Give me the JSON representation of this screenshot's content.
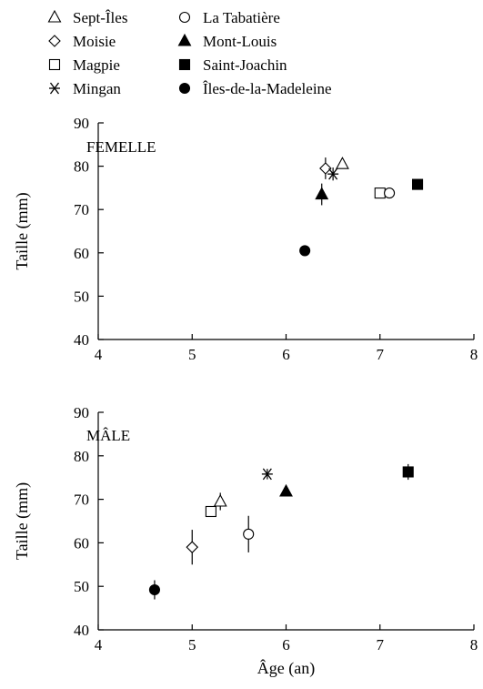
{
  "legend": {
    "items": [
      {
        "label": "Sept-Îles",
        "marker": "triangle-open"
      },
      {
        "label": "Moisie",
        "marker": "diamond-open"
      },
      {
        "label": "Magpie",
        "marker": "square-open"
      },
      {
        "label": "Mingan",
        "marker": "asterisk"
      },
      {
        "label": "La Tabatière",
        "marker": "circle-open"
      },
      {
        "label": "Mont-Louis",
        "marker": "triangle-filled"
      },
      {
        "label": "Saint-Joachin",
        "marker": "square-filled"
      },
      {
        "label": "Îles-de-la-Madeleine",
        "marker": "circle-filled"
      }
    ]
  },
  "chart_data": [
    {
      "type": "scatter",
      "panel_label": "FEMELLE",
      "xlabel": "",
      "ylabel": "Taille (mm)",
      "xlim": [
        4,
        8
      ],
      "ylim": [
        40,
        90
      ],
      "xticks": [
        4,
        5,
        6,
        7,
        8
      ],
      "yticks": [
        40,
        50,
        60,
        70,
        80,
        90
      ],
      "points": [
        {
          "site": "Sept-Îles",
          "x": 6.6,
          "y": 80.5,
          "err": 0
        },
        {
          "site": "Moisie",
          "x": 6.42,
          "y": 79.5,
          "err": 2.5
        },
        {
          "site": "Magpie",
          "x": 7.0,
          "y": 73.8,
          "err": 0
        },
        {
          "site": "Mingan",
          "x": 6.5,
          "y": 78.2,
          "err": 1.5
        },
        {
          "site": "La Tabatière",
          "x": 7.1,
          "y": 73.8,
          "err": 0
        },
        {
          "site": "Mont-Louis",
          "x": 6.38,
          "y": 73.5,
          "err": 2.5
        },
        {
          "site": "Saint-Joachin",
          "x": 7.4,
          "y": 75.8,
          "err": 0
        },
        {
          "site": "Îles-de-la-Madeleine",
          "x": 6.2,
          "y": 60.5,
          "err": 0
        }
      ]
    },
    {
      "type": "scatter",
      "panel_label": "MÂLE",
      "xlabel": "Âge (an)",
      "ylabel": "Taille (mm)",
      "xlim": [
        4,
        8
      ],
      "ylim": [
        40,
        90
      ],
      "xticks": [
        4,
        5,
        6,
        7,
        8
      ],
      "yticks": [
        40,
        50,
        60,
        70,
        80,
        90
      ],
      "points": [
        {
          "site": "Sept-Îles",
          "x": 5.3,
          "y": 69.5,
          "err": 2.0
        },
        {
          "site": "Moisie",
          "x": 5.0,
          "y": 59.0,
          "err": 4.0
        },
        {
          "site": "Magpie",
          "x": 5.2,
          "y": 67.2,
          "err": 0
        },
        {
          "site": "Mingan",
          "x": 5.8,
          "y": 75.8,
          "err": 1.2
        },
        {
          "site": "La Tabatière",
          "x": 5.6,
          "y": 62.0,
          "err": 4.2
        },
        {
          "site": "Mont-Louis",
          "x": 6.0,
          "y": 71.8,
          "err": 0
        },
        {
          "site": "Saint-Joachin",
          "x": 7.3,
          "y": 76.3,
          "err": 1.8
        },
        {
          "site": "Îles-de-la-Madeleine",
          "x": 4.6,
          "y": 49.2,
          "err": 2.2
        }
      ]
    }
  ]
}
